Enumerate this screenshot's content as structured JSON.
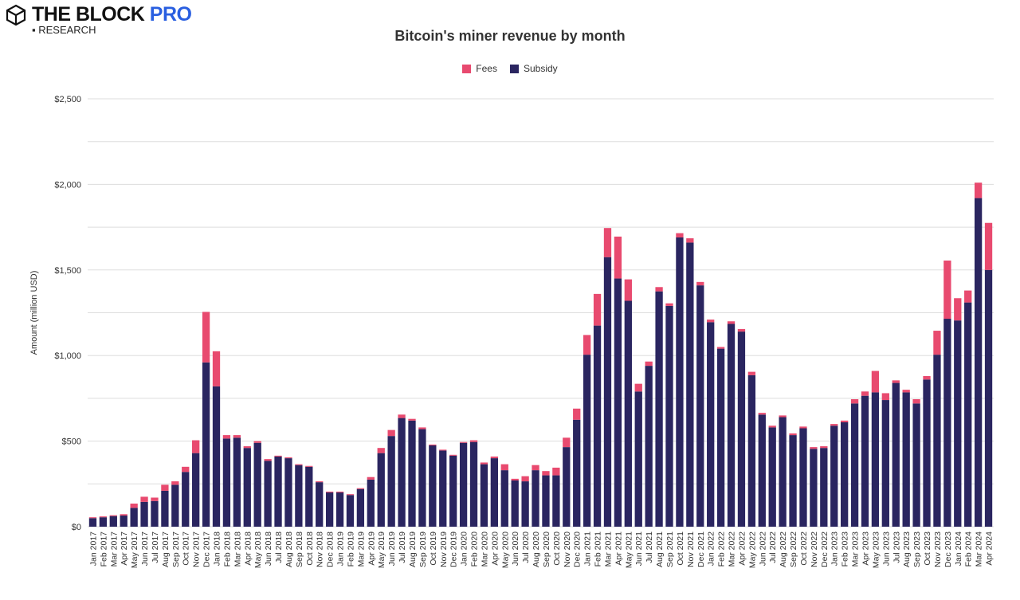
{
  "brand": {
    "name_part1": "THE BLOCK ",
    "name_part2": "PRO",
    "sub": "▪ RESEARCH",
    "icon": "cube-logo-icon"
  },
  "colors": {
    "fees": "#e84a6f",
    "subsidy": "#2a2560",
    "grid": "#dddddd"
  },
  "chart_data": {
    "type": "bar",
    "stacked": true,
    "title": "Bitcoin's miner revenue by month",
    "ylabel": "Amount (million USD)",
    "xlabel": "",
    "ylim": [
      0,
      2500
    ],
    "yticks": [
      0,
      500,
      1000,
      1500,
      2000,
      2500
    ],
    "ytick_labels": [
      "$0",
      "$500",
      "$1,000",
      "$1,500",
      "$2,000",
      "$2,500"
    ],
    "grid": true,
    "legend_position": "top-center",
    "categories": [
      "Jan 2017",
      "Feb 2017",
      "Mar 2017",
      "Apr 2017",
      "May 2017",
      "Jun 2017",
      "Jul 2017",
      "Aug 2017",
      "Sep 2017",
      "Oct 2017",
      "Nov 2017",
      "Dec 2017",
      "Jan 2018",
      "Feb 2018",
      "Mar 2018",
      "Apr 2018",
      "May 2018",
      "Jun 2018",
      "Jul 2018",
      "Aug 2018",
      "Sep 2018",
      "Oct 2018",
      "Nov 2018",
      "Dec 2018",
      "Jan 2019",
      "Feb 2019",
      "Mar 2019",
      "Apr 2019",
      "May 2019",
      "Jun 2019",
      "Jul 2019",
      "Aug 2019",
      "Sep 2019",
      "Oct 2019",
      "Nov 2019",
      "Dec 2019",
      "Jan 2020",
      "Feb 2020",
      "Mar 2020",
      "Apr 2020",
      "May 2020",
      "Jun 2020",
      "Jul 2020",
      "Aug 2020",
      "Sep 2020",
      "Oct 2020",
      "Nov 2020",
      "Dec 2020",
      "Jan 2021",
      "Feb 2021",
      "Mar 2021",
      "Apr 2021",
      "May 2021",
      "Jun 2021",
      "Jul 2021",
      "Aug 2021",
      "Sep 2021",
      "Oct 2021",
      "Nov 2021",
      "Dec 2021",
      "Jan 2022",
      "Feb 2022",
      "Mar 2022",
      "Apr 2022",
      "May 2022",
      "Jun 2022",
      "Jul 2022",
      "Aug 2022",
      "Sep 2022",
      "Oct 2022",
      "Nov 2022",
      "Dec 2022",
      "Jan 2023",
      "Feb 2023",
      "Mar 2023",
      "Apr 2023",
      "May 2023",
      "Jun 2023",
      "Jul 2023",
      "Aug 2023",
      "Sep 2023",
      "Oct 2023",
      "Nov 2023",
      "Dec 2023",
      "Jan 2024",
      "Feb 2024",
      "Mar 2024",
      "Apr 2024"
    ],
    "series": [
      {
        "name": "Subsidy",
        "values": [
          50,
          55,
          62,
          65,
          110,
          145,
          150,
          210,
          245,
          320,
          430,
          960,
          820,
          515,
          520,
          460,
          490,
          385,
          410,
          400,
          360,
          350,
          260,
          200,
          200,
          185,
          220,
          275,
          430,
          530,
          635,
          620,
          570,
          475,
          445,
          415,
          490,
          495,
          365,
          400,
          330,
          270,
          265,
          330,
          300,
          300,
          465,
          625,
          1005,
          1175,
          1575,
          1450,
          1320,
          790,
          940,
          1375,
          1290,
          1690,
          1660,
          1410,
          1195,
          1040,
          1185,
          1140,
          885,
          655,
          580,
          640,
          535,
          575,
          455,
          460,
          590,
          610,
          720,
          765,
          785,
          740,
          840,
          785,
          720,
          860,
          1005,
          1215,
          1205,
          1310,
          1920,
          1500
        ]
      },
      {
        "name": "Fees",
        "values": [
          5,
          5,
          5,
          8,
          25,
          30,
          20,
          35,
          20,
          30,
          75,
          295,
          205,
          20,
          15,
          10,
          10,
          10,
          5,
          5,
          5,
          5,
          5,
          5,
          5,
          5,
          5,
          15,
          30,
          35,
          20,
          10,
          10,
          5,
          5,
          5,
          5,
          10,
          10,
          10,
          35,
          10,
          30,
          30,
          25,
          45,
          55,
          65,
          115,
          185,
          170,
          245,
          125,
          45,
          25,
          25,
          15,
          25,
          25,
          20,
          15,
          10,
          15,
          15,
          20,
          10,
          10,
          10,
          10,
          10,
          10,
          10,
          10,
          10,
          25,
          25,
          125,
          40,
          15,
          15,
          25,
          20,
          140,
          340,
          130,
          70,
          90,
          275
        ]
      }
    ]
  }
}
